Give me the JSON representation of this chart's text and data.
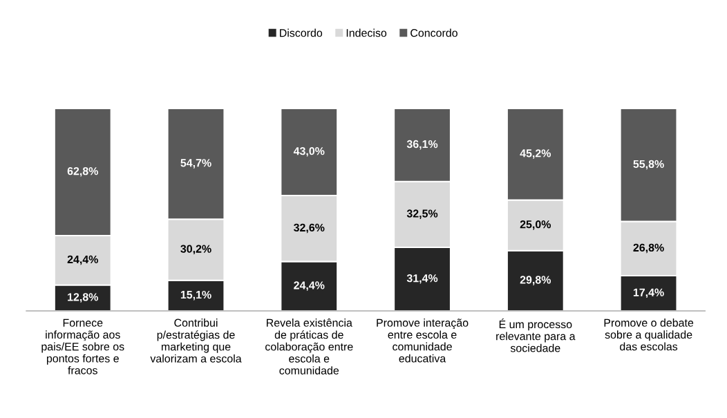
{
  "chart_data": {
    "type": "bar",
    "stacked": true,
    "legend": "top",
    "grid": false,
    "categories": [
      "Fornece\ninformação aos\npais/EE sobre os\npontos fortes e\nfracos",
      "Contribui\np/estratégias de\nmarketing que\nvalorizam a escola",
      "Revela existência\nde práticas de\ncolaboração entre\nescola e\ncomunidade",
      "Promove interação\nentre escola e\ncomunidade\neducativa",
      "É um processo\nrelevante para a\nsociedade",
      "Promove o debate\nsobre a qualidade\ndas escolas"
    ],
    "series": [
      {
        "name": "Discordo",
        "color": "#262626",
        "values": [
          12.8,
          15.1,
          24.4,
          31.4,
          29.8,
          17.4
        ],
        "value_labels": [
          "12,8%",
          "15,1%",
          "24,4%",
          "31,4%",
          "29,8%",
          "17,4%"
        ]
      },
      {
        "name": "Indeciso",
        "color": "#d9d9d9",
        "values": [
          24.4,
          30.2,
          32.6,
          32.5,
          25.0,
          26.8
        ],
        "value_labels": [
          "24,4%",
          "30,2%",
          "32,6%",
          "32,5%",
          "25,0%",
          "26,8%"
        ]
      },
      {
        "name": "Concordo",
        "color": "#595959",
        "values": [
          62.8,
          54.7,
          43.0,
          36.1,
          45.2,
          55.8
        ],
        "value_labels": [
          "62,8%",
          "54,7%",
          "43,0%",
          "36,1%",
          "45,2%",
          "55,8%"
        ]
      }
    ]
  }
}
